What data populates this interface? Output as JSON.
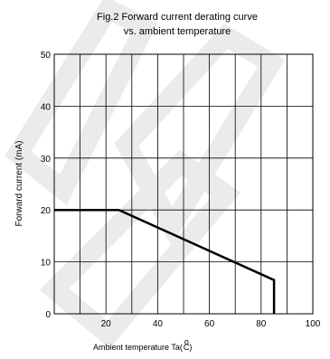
{
  "chart_data": {
    "type": "line",
    "title_line1": "Fig.2 Forward current derating curve",
    "title_line2": "vs. ambient temperature",
    "xlabel_prefix": "Ambient temperature Ta(",
    "xlabel_degree": "o",
    "xlabel_unit": "C)",
    "ylabel": "Forward current (mA)",
    "xlim": [
      0,
      100
    ],
    "ylim": [
      0,
      50
    ],
    "x_ticks": [
      "20",
      "40",
      "60",
      "80",
      "100"
    ],
    "y_ticks": [
      "0",
      "10",
      "20",
      "30",
      "40",
      "50"
    ],
    "grid": true,
    "series": [
      {
        "x": [
          0,
          25,
          85,
          85
        ],
        "y": [
          20,
          20,
          6.5,
          0
        ]
      }
    ]
  },
  "watermark": {
    "text": "LED",
    "color": "#e6e6e6"
  }
}
